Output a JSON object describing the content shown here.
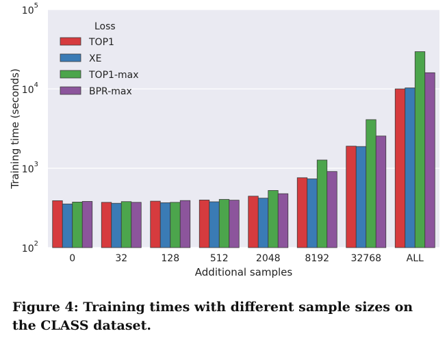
{
  "chart_data": {
    "type": "bar",
    "categories": [
      "0",
      "32",
      "128",
      "512",
      "2048",
      "8192",
      "32768",
      "ALL"
    ],
    "series": [
      {
        "name": "TOP1",
        "color": "#d63b3e",
        "values": [
          390,
          372,
          385,
          398,
          445,
          760,
          1900,
          10000
        ]
      },
      {
        "name": "XE",
        "color": "#3a7bb5",
        "values": [
          355,
          362,
          368,
          378,
          420,
          735,
          1880,
          10300
        ]
      },
      {
        "name": "TOP1-max",
        "color": "#4ca54c",
        "values": [
          375,
          380,
          372,
          405,
          525,
          1270,
          4100,
          29500
        ]
      },
      {
        "name": "BPR-max",
        "color": "#8c559c",
        "values": [
          382,
          372,
          392,
          396,
          478,
          910,
          2550,
          16000
        ]
      }
    ],
    "title": "",
    "xlabel": "Additional samples",
    "ylabel": "Training time (seconds)",
    "yscale": "log",
    "ylim": [
      100,
      100000
    ],
    "y_ticks": [
      {
        "value": 100,
        "base": "10",
        "exp": "2"
      },
      {
        "value": 1000,
        "base": "10",
        "exp": "3"
      },
      {
        "value": 10000,
        "base": "10",
        "exp": "4"
      },
      {
        "value": 100000,
        "base": "10",
        "exp": "5"
      }
    ],
    "legend_title": "Loss",
    "legend_position": "top-left",
    "grid": "horizontal",
    "background": "#eaeaf2"
  },
  "caption": "Figure 4: Training times with different sample sizes on the CLASS dataset."
}
